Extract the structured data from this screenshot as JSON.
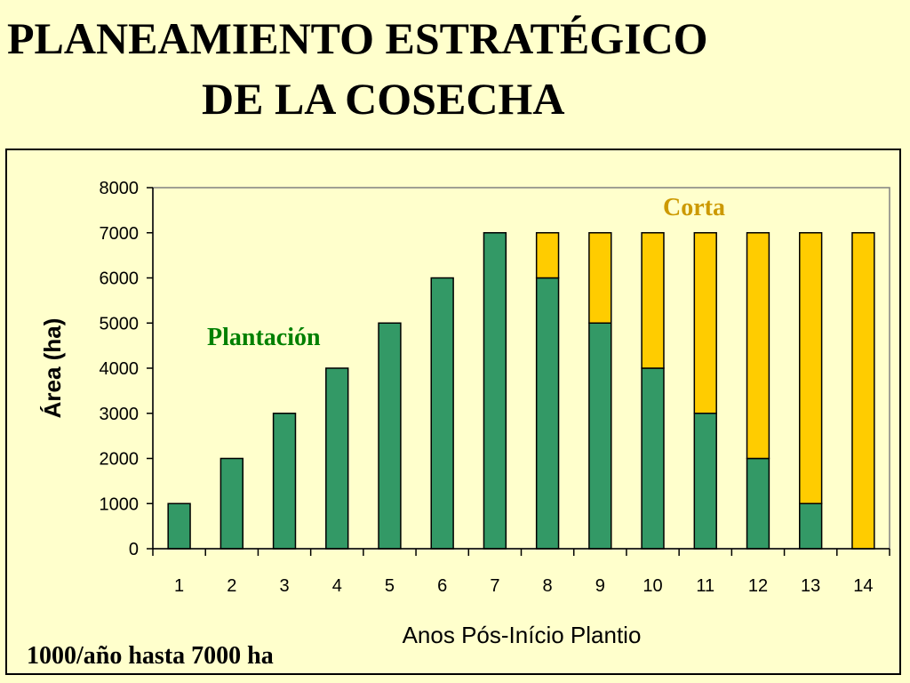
{
  "title": {
    "line1": "PLANEAMIENTO ESTRATÉGICO",
    "line2": "DE LA COSECHA"
  },
  "footnote": "1000/año hasta 7000 ha",
  "colors": {
    "background": "#ffffcc",
    "plot_area": "#ffffcc",
    "plantacion": "#339966",
    "corta": "#ffcc00",
    "plantacion_label": "#008000",
    "corta_label": "#cc9900"
  },
  "chart_data": {
    "type": "bar",
    "stacked": true,
    "categories": [
      "1",
      "2",
      "3",
      "4",
      "5",
      "6",
      "7",
      "8",
      "9",
      "10",
      "11",
      "12",
      "13",
      "14"
    ],
    "series": [
      {
        "name": "Plantación",
        "values": [
          1000,
          2000,
          3000,
          4000,
          5000,
          6000,
          7000,
          6000,
          5000,
          4000,
          3000,
          2000,
          1000,
          0
        ]
      },
      {
        "name": "Corta",
        "values": [
          0,
          0,
          0,
          0,
          0,
          0,
          0,
          1000,
          2000,
          3000,
          4000,
          5000,
          6000,
          7000
        ]
      }
    ],
    "xlabel": "Anos Pós-Início Plantio",
    "ylabel": "Área (ha)",
    "ylim": [
      0,
      8000
    ],
    "yticks": [
      0,
      1000,
      2000,
      3000,
      4000,
      5000,
      6000,
      7000,
      8000
    ],
    "grid": false,
    "legend": "none",
    "annotations": [
      {
        "text": "Plantación",
        "series": "Plantación"
      },
      {
        "text": "Corta",
        "series": "Corta"
      }
    ]
  }
}
